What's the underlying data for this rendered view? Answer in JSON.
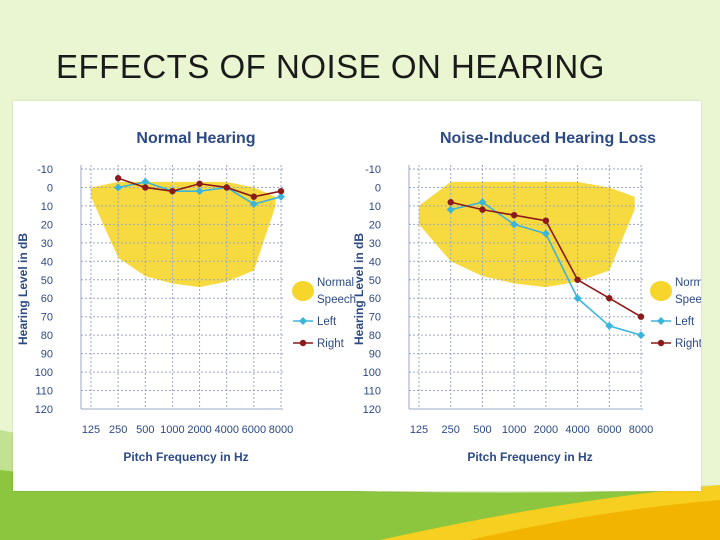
{
  "slide": {
    "title": "EFFECTS OF NOISE ON HEARING"
  },
  "colors": {
    "background": "#eaf5d2",
    "speech_band": "#f6d62a",
    "left_series": "#3bb5dc",
    "right_series": "#8b1a1a",
    "grid": "#9aa8c8",
    "text": "#2c4a86"
  },
  "chart_data": [
    {
      "type": "line",
      "title": "Normal Hearing",
      "xlabel": "Pitch Frequency in Hz",
      "ylabel": "Hearing Level in dB",
      "categories": [
        "125",
        "250",
        "500",
        "1000",
        "2000",
        "4000",
        "6000",
        "8000"
      ],
      "y_ticks": [
        "-10",
        "0",
        "10",
        "20",
        "30",
        "40",
        "50",
        "60",
        "70",
        "80",
        "90",
        "100",
        "110",
        "120"
      ],
      "ylim": [
        -10,
        120
      ],
      "y_inverted": true,
      "grid": true,
      "speech_band": [
        {
          "x": 0,
          "low": 0,
          "high": 5
        },
        {
          "x": 1,
          "low": -3,
          "high": 38
        },
        {
          "x": 2,
          "low": -3,
          "high": 48
        },
        {
          "x": 3,
          "low": -3,
          "high": 52
        },
        {
          "x": 4,
          "low": -3,
          "high": 54
        },
        {
          "x": 5,
          "low": -3,
          "high": 51
        },
        {
          "x": 6,
          "low": 0,
          "high": 45
        },
        {
          "x": 6.8,
          "low": 5,
          "high": 10
        }
      ],
      "series": [
        {
          "name": "Left",
          "marker": "diamond",
          "values": [
            null,
            0,
            -3,
            2,
            2,
            0,
            9,
            5
          ]
        },
        {
          "name": "Right",
          "marker": "circle",
          "values": [
            null,
            -5,
            0,
            2,
            -2,
            0,
            5,
            2
          ]
        }
      ],
      "legend": [
        "Normal Speech",
        "Left",
        "Right"
      ],
      "legend_position": "right"
    },
    {
      "type": "line",
      "title": "Noise-Induced Hearing Loss",
      "xlabel": "Pitch Frequency in Hz",
      "ylabel": "Hearing Level in dB",
      "categories": [
        "125",
        "250",
        "500",
        "1000",
        "2000",
        "4000",
        "6000",
        "8000"
      ],
      "y_ticks": [
        "-10",
        "0",
        "10",
        "20",
        "30",
        "40",
        "50",
        "60",
        "70",
        "80",
        "90",
        "100",
        "110",
        "120"
      ],
      "ylim": [
        -10,
        120
      ],
      "y_inverted": true,
      "grid": true,
      "speech_band": [
        {
          "x": 0,
          "low": 10,
          "high": 20
        },
        {
          "x": 1,
          "low": -3,
          "high": 40
        },
        {
          "x": 2,
          "low": -3,
          "high": 48
        },
        {
          "x": 3,
          "low": -3,
          "high": 52
        },
        {
          "x": 4,
          "low": -3,
          "high": 54
        },
        {
          "x": 5,
          "low": -3,
          "high": 51
        },
        {
          "x": 6,
          "low": 0,
          "high": 45
        },
        {
          "x": 6.8,
          "low": 5,
          "high": 12
        }
      ],
      "series": [
        {
          "name": "Left",
          "marker": "diamond",
          "values": [
            null,
            12,
            8,
            20,
            25,
            60,
            75,
            80
          ]
        },
        {
          "name": "Right",
          "marker": "circle",
          "values": [
            null,
            8,
            12,
            15,
            18,
            50,
            60,
            70
          ]
        }
      ],
      "legend": [
        "Normal Speech",
        "Left",
        "Right"
      ],
      "legend_position": "right"
    }
  ]
}
